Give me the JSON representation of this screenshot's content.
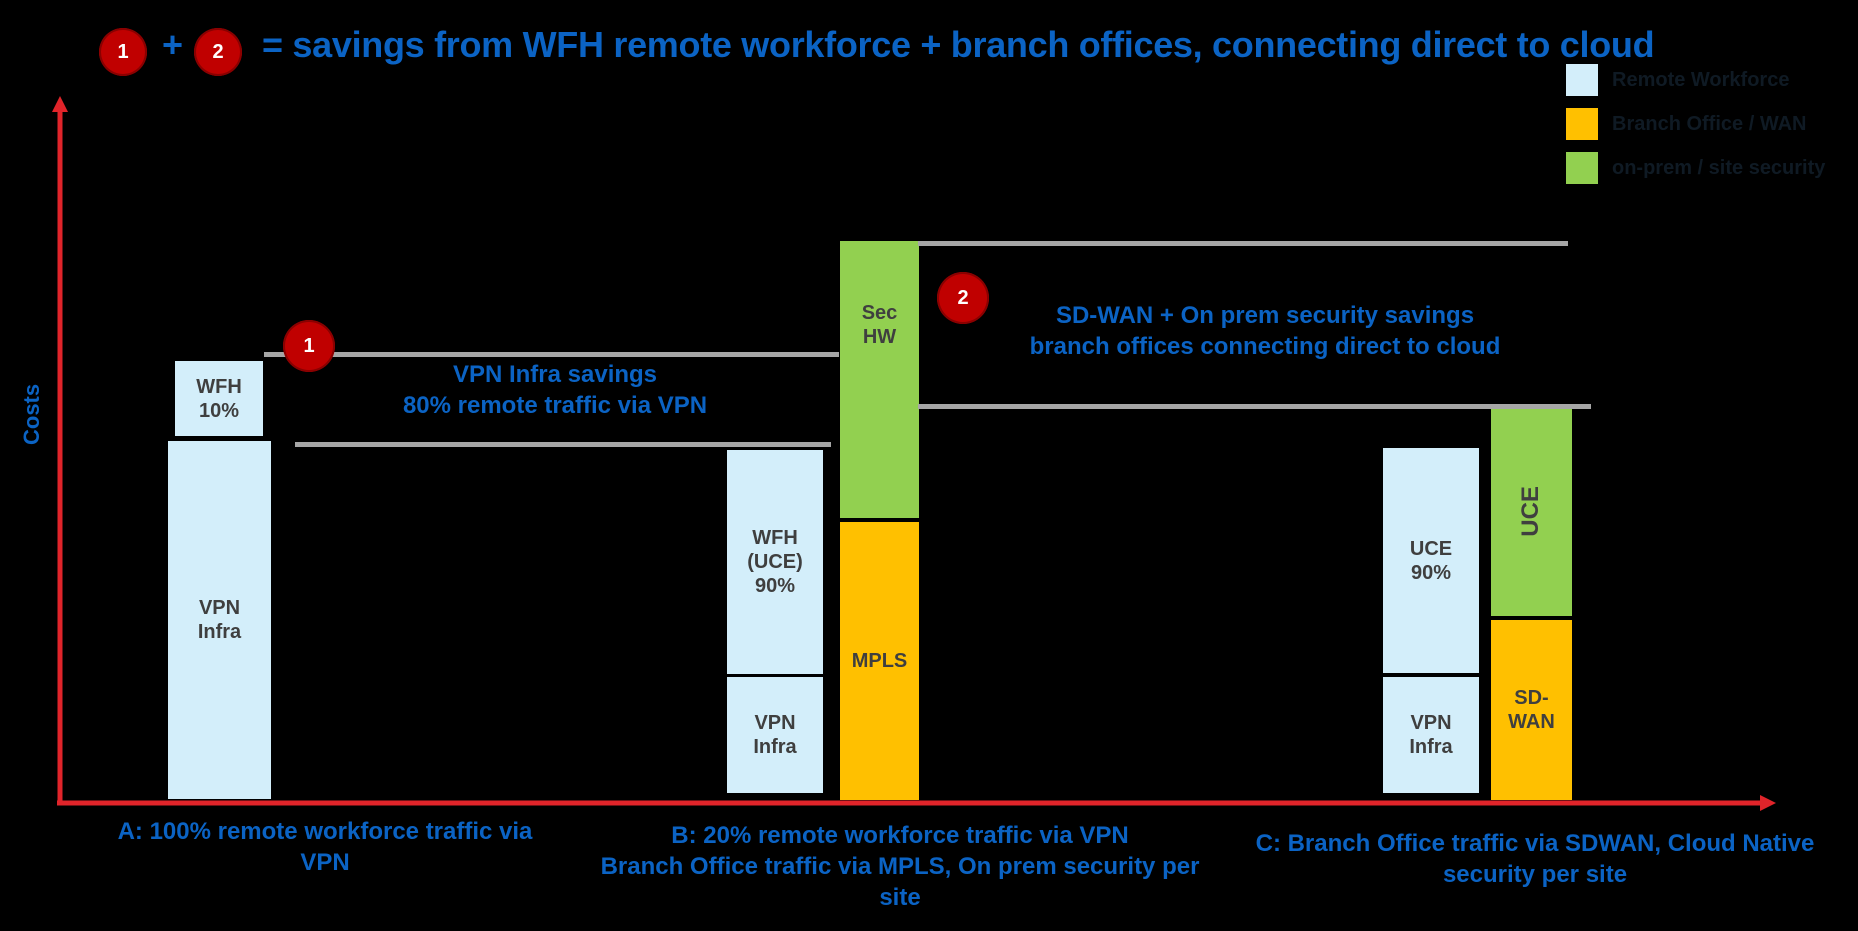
{
  "header": {
    "badge1": "1",
    "plus": "+",
    "badge2": "2",
    "title": "= savings from WFH remote workforce + branch offices, connecting direct to cloud"
  },
  "legend": [
    {
      "label": "Remote Workforce",
      "color": "#d3eefa"
    },
    {
      "label": "Branch Office / WAN",
      "color": "#ffc000"
    },
    {
      "label": "on-prem / site security",
      "color": "#92d050"
    }
  ],
  "axis": {
    "y_label": "Costs"
  },
  "columns": {
    "a": {
      "wfh": "WFH\n10%",
      "vpn": "VPN\nInfra",
      "caption": "A: 100% remote workforce traffic via VPN"
    },
    "b": {
      "wfh_uce": "WFH\n(UCE)\n90%",
      "vpn": "VPN\nInfra",
      "mpls": "MPLS",
      "sec_hw": "Sec\nHW",
      "caption": "B: 20% remote workforce traffic via VPN\nBranch Office traffic via MPLS, On prem security per site"
    },
    "c": {
      "uce": "UCE\n90%",
      "vpn": "VPN\nInfra",
      "uce_green": "UCE",
      "sdwan": "SD-\nWAN",
      "caption": "C: Branch Office traffic via SDWAN, Cloud Native security per site"
    }
  },
  "savings": {
    "s1_badge": "1",
    "s1_text": "VPN Infra savings\n80% remote traffic via VPN",
    "s2_badge": "2",
    "s2_text": "SD-WAN + On prem security savings\nbranch offices connecting direct to cloud"
  }
}
